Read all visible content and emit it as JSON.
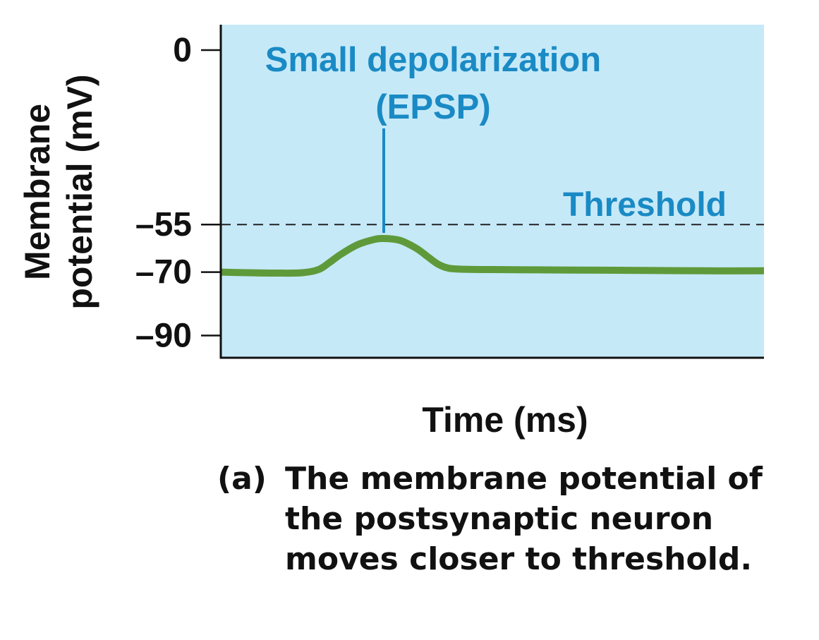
{
  "chart_data": {
    "type": "line",
    "ylabel": [
      "Membrane",
      "potential (mV)"
    ],
    "xlabel": "Time (ms)",
    "ylim": [
      -97,
      8
    ],
    "yticks": [
      {
        "value": 0,
        "label": "0"
      },
      {
        "value": -55,
        "label": "–55"
      },
      {
        "value": -70,
        "label": "–70"
      },
      {
        "value": -90,
        "label": "–90"
      }
    ],
    "threshold": {
      "value": -55,
      "label": "Threshold"
    },
    "annotation": {
      "lines": [
        "Small depolarization",
        "(EPSP)"
      ],
      "peak": -59
    },
    "series": [
      {
        "x": [
          0,
          5,
          10,
          15,
          18,
          20,
          22,
          25,
          28,
          30,
          33,
          36,
          38,
          40,
          42,
          45,
          50,
          60,
          70,
          80,
          90,
          100
        ],
        "y": [
          -70,
          -70.2,
          -70.3,
          -70.2,
          -69.2,
          -67,
          -64.5,
          -61.5,
          -59.8,
          -59.4,
          -60,
          -62.5,
          -65,
          -67.5,
          -68.8,
          -69.1,
          -69.2,
          -69.3,
          -69.4,
          -69.5,
          -69.6,
          -69.6
        ]
      }
    ],
    "colors": {
      "plot_background": "#c6e9f8",
      "line": "#5f9a3a",
      "annotation": "#1a8ac4",
      "threshold_line": "#222222",
      "axis": "#111111"
    },
    "grid": false
  },
  "caption": {
    "label": "(a)",
    "text": "The membrane potential of the postsynaptic neuron moves closer to threshold."
  }
}
